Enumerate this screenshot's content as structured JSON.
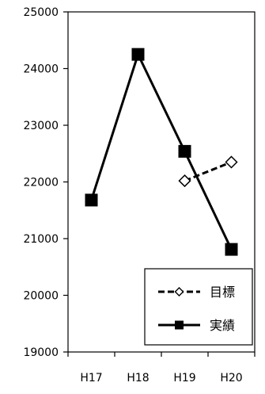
{
  "chart_data": {
    "type": "line",
    "title": "",
    "xlabel": "",
    "ylabel": "",
    "categories": [
      "H17",
      "H18",
      "H19",
      "H20"
    ],
    "ylim": [
      19000,
      25000
    ],
    "yticks": [
      "19000",
      "20000",
      "21000",
      "22000",
      "23000",
      "24000",
      "25000"
    ],
    "grid": false,
    "legend_position": "bottom-right",
    "series": [
      {
        "name": "目標",
        "style": "dashed",
        "marker": "open-diamond",
        "color": "#000000",
        "values": [
          null,
          null,
          22020,
          22350
        ]
      },
      {
        "name": "実績",
        "style": "solid",
        "marker": "filled-square",
        "color": "#000000",
        "values": [
          21680,
          24250,
          22540,
          20810
        ]
      }
    ]
  }
}
